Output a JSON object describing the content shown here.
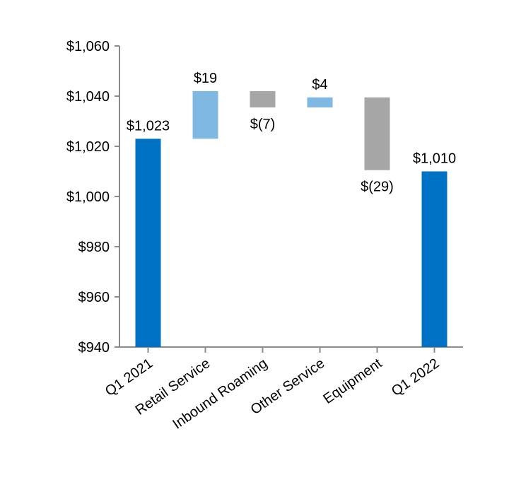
{
  "chart_data": {
    "type": "bar",
    "subtype": "waterfall",
    "title": "",
    "xlabel": "",
    "ylabel": "",
    "ylim": [
      940,
      1060
    ],
    "yticks": [
      940,
      960,
      980,
      1000,
      1020,
      1040,
      1060
    ],
    "ytick_labels": [
      "$940",
      "$960",
      "$980",
      "$1,000",
      "$1,020",
      "$1,040",
      "$1,060"
    ],
    "grid": false,
    "legend": "none",
    "categories": [
      "Q1 2021",
      "Retail Service",
      "Inbound Roaming",
      "Other Service",
      "Equipment",
      "Q1 2022"
    ],
    "bars": [
      {
        "category": "Q1 2021",
        "kind": "total",
        "start": 940,
        "end": 1023,
        "label": "$1,023",
        "color": "#0072c6",
        "label_pos": "above"
      },
      {
        "category": "Retail Service",
        "kind": "increase",
        "start": 1023,
        "end": 1042,
        "label": "$19",
        "color": "#7fb9e3",
        "label_pos": "above"
      },
      {
        "category": "Inbound Roaming",
        "kind": "decrease",
        "start": 1042,
        "end": 1035.5,
        "label": "$(7)",
        "color": "#a6a6a6",
        "label_pos": "below"
      },
      {
        "category": "Other Service",
        "kind": "increase",
        "start": 1035.5,
        "end": 1039.5,
        "label": "$4",
        "color": "#7fb9e3",
        "label_pos": "above"
      },
      {
        "category": "Equipment",
        "kind": "decrease",
        "start": 1039.5,
        "end": 1010.5,
        "label": "$(29)",
        "color": "#a6a6a6",
        "label_pos": "below"
      },
      {
        "category": "Q1 2022",
        "kind": "total",
        "start": 940,
        "end": 1010,
        "label": "$1,010",
        "color": "#0072c6",
        "label_pos": "above"
      }
    ],
    "axis_color": "#8c8c8c"
  }
}
